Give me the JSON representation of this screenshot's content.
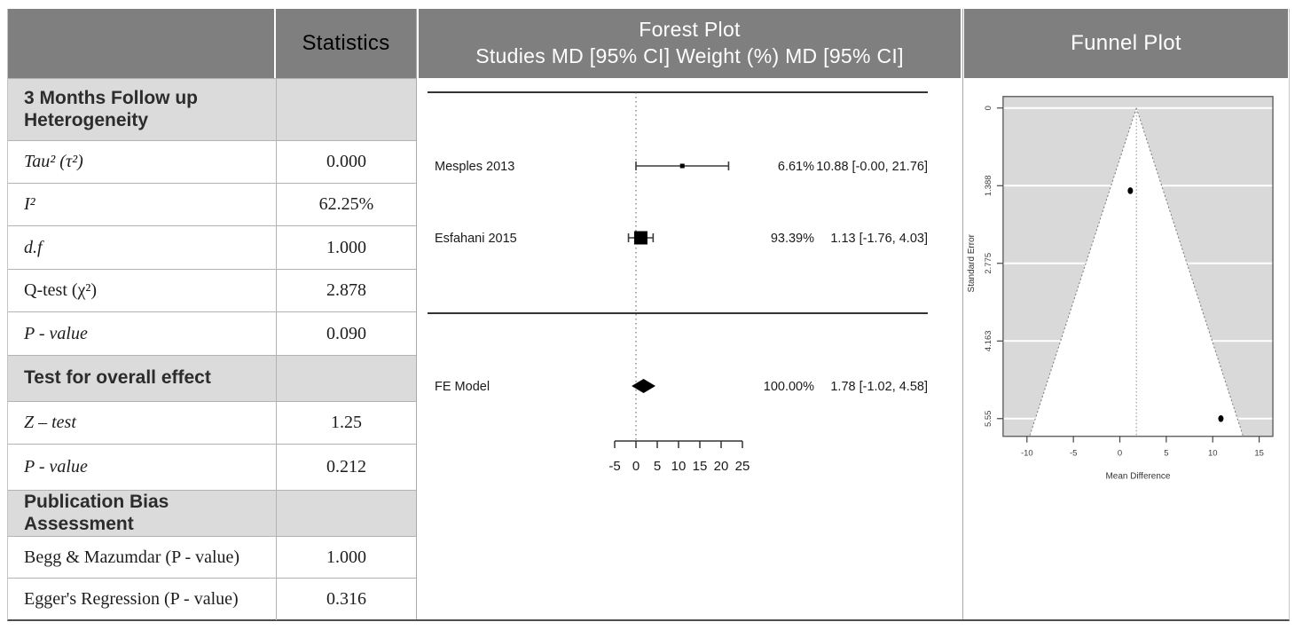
{
  "colors": {
    "header_bg": "#7f7f7f",
    "header_text": "#ffffff",
    "section_bg": "#dbdbdb",
    "grid_line": "#b3b3b3",
    "plot_ink": "#1a1a1a",
    "funnel_bg": "#d9d9d9",
    "funnel_region": "#ffffff"
  },
  "header": {
    "statistics_label": "Statistics",
    "forest_title": "Forest Plot",
    "forest_subtitle": "Studies MD [95% CI] Weight (%) MD [95% CI]",
    "funnel_title": "Funnel Plot"
  },
  "stats_table": {
    "sections": [
      {
        "header": "3 Months Follow up Heterogeneity",
        "rows": [
          {
            "label": "Tau² (τ²)",
            "value": "0.000",
            "italic": true
          },
          {
            "label": "I²",
            "value": "62.25%",
            "italic": true
          },
          {
            "label": "d.f",
            "value": "1.000",
            "italic": true
          },
          {
            "label": "Q-test (χ²)",
            "value": "2.878",
            "italic": false
          },
          {
            "label": "P - value",
            "value": "0.090",
            "italic": true
          }
        ]
      },
      {
        "header": "Test for overall effect",
        "rows": [
          {
            "label": "Z – test",
            "value": "1.25",
            "italic": true
          },
          {
            "label": "P - value",
            "value": "0.212",
            "italic": true
          }
        ]
      },
      {
        "header": "Publication Bias Assessment",
        "rows": [
          {
            "label": "Begg & Mazumdar (P - value)",
            "value": "1.000",
            "italic": false
          },
          {
            "label": "Egger's Regression (P - value)",
            "value": "0.316",
            "italic": false
          }
        ]
      }
    ]
  },
  "chart_data": [
    {
      "type": "forest",
      "effect_measure": "MD",
      "model": "fixed-effect",
      "x_ticks": [
        -5,
        0,
        5,
        10,
        15,
        20,
        25
      ],
      "reference_line": 0,
      "studies": [
        {
          "label": "Mesples 2013",
          "md": 10.88,
          "ci_low": 0.0,
          "ci_high": 21.76,
          "weight_pct": 6.61,
          "weight_label": "6.61%",
          "estimate_label": "10.88 [-0.00, 21.76]"
        },
        {
          "label": "Esfahani 2015",
          "md": 1.13,
          "ci_low": -1.76,
          "ci_high": 4.03,
          "weight_pct": 93.39,
          "weight_label": "93.39%",
          "estimate_label": "1.13 [-1.76, 4.03]"
        }
      ],
      "summary": {
        "label": "FE Model",
        "md": 1.78,
        "ci_low": -1.02,
        "ci_high": 4.58,
        "weight_label": "100.00%",
        "estimate_label": "1.78 [-1.02, 4.58]"
      }
    },
    {
      "type": "funnel",
      "xlabel": "Mean Difference",
      "ylabel": "Standard Error",
      "x_ticks": [
        -10,
        -5,
        0,
        5,
        10,
        15
      ],
      "y_ticks": [
        0,
        1.388,
        2.775,
        4.163,
        5.55
      ],
      "y_tick_labels": [
        "0",
        "1.388",
        "2.775",
        "4.163",
        "5.55"
      ],
      "center": 1.78,
      "ci_multiplier": 1.96,
      "xlim": [
        -12.6,
        16.5
      ],
      "ylim": [
        5.87,
        -0.21
      ],
      "points": [
        {
          "x": 1.13,
          "se": 1.477
        },
        {
          "x": 10.88,
          "se": 5.55
        }
      ]
    }
  ]
}
